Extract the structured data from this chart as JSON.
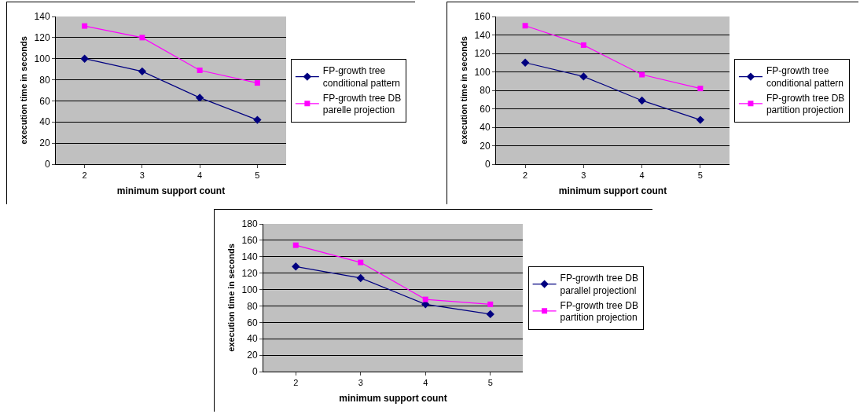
{
  "chart_data": [
    {
      "type": "line",
      "xlabel": "minimum support count",
      "ylabel": "execution time in seconds",
      "categories": [
        "2",
        "3",
        "4",
        "5"
      ],
      "series": [
        {
          "name": "FP-growth tree conditional pattern",
          "color": "#000080",
          "marker": "diamond",
          "values": [
            100,
            88,
            63,
            42
          ]
        },
        {
          "name": "FP-growth tree DB parelle projection",
          "color": "#ff00ff",
          "marker": "square",
          "values": [
            131,
            120,
            89,
            77
          ]
        }
      ],
      "ylim": [
        0,
        140
      ],
      "yticks": [
        0,
        20,
        40,
        60,
        80,
        100,
        120,
        140
      ],
      "grid": "y",
      "legend": "right",
      "line_style": "solid"
    },
    {
      "type": "line",
      "xlabel": "minimum support count",
      "ylabel": "execution time in seconds",
      "categories": [
        "2",
        "3",
        "4",
        "5"
      ],
      "series": [
        {
          "name": "FP-growth tree conditional pattern",
          "color": "#000080",
          "marker": "diamond",
          "values": [
            110,
            95,
            69,
            48
          ]
        },
        {
          "name": "FP-growth tree DB partition projection",
          "color": "#ff00ff",
          "marker": "square",
          "values": [
            150,
            129,
            97,
            82
          ]
        }
      ],
      "ylim": [
        0,
        160
      ],
      "yticks": [
        0,
        20,
        40,
        60,
        80,
        100,
        120,
        140,
        160
      ],
      "grid": "y",
      "legend": "right",
      "line_style": "solid"
    },
    {
      "type": "line",
      "xlabel": "minimum support count",
      "ylabel": "execution time in seconds",
      "categories": [
        "2",
        "3",
        "4",
        "5"
      ],
      "series": [
        {
          "name": "FP-growth tree DB parallel projectionl",
          "color": "#000080",
          "marker": "diamond",
          "values": [
            128,
            114,
            82,
            70
          ]
        },
        {
          "name": "FP-growth tree DB partition projection",
          "color": "#ff00ff",
          "marker": "square",
          "values": [
            154,
            133,
            88,
            82
          ]
        }
      ],
      "ylim": [
        0,
        180
      ],
      "yticks": [
        0,
        20,
        40,
        60,
        80,
        100,
        120,
        140,
        160,
        180
      ],
      "grid": "y",
      "legend": "right",
      "line_style": "solid"
    }
  ]
}
